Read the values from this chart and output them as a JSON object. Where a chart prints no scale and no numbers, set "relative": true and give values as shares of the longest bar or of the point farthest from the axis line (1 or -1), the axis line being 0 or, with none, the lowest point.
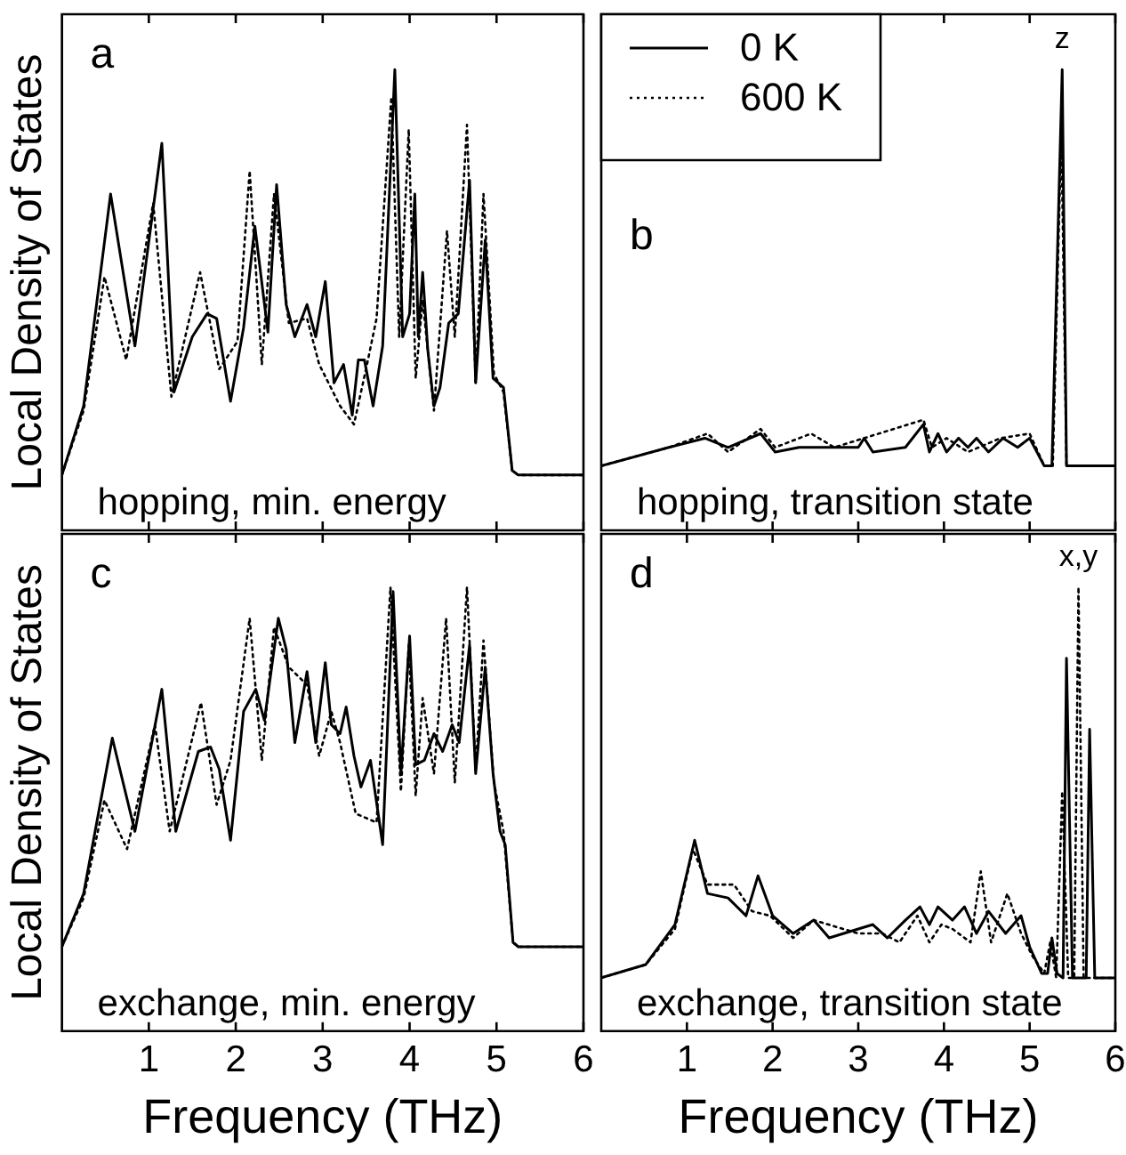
{
  "chart_data": [
    {
      "type": "line",
      "title": "a",
      "ylabel": "Local Density of States",
      "annotations": [
        "hopping, min. energy"
      ],
      "relative": true,
      "xlim": [
        0,
        6
      ],
      "xticks": [
        1,
        2,
        3,
        4,
        5,
        6
      ],
      "tick_labels": false,
      "legend": false,
      "series": [
        {
          "color": "#000000",
          "line_style": "solid",
          "x": [
            0,
            0.25,
            0.56,
            0.84,
            1.15,
            1.29,
            1.5,
            1.67,
            1.78,
            1.94,
            2.09,
            2.22,
            2.37,
            2.47,
            2.58,
            2.68,
            2.82,
            2.92,
            3.03,
            3.13,
            3.24,
            3.34,
            3.41,
            3.48,
            3.58,
            3.69,
            3.83,
            3.92,
            4.0,
            4.06,
            4.1,
            4.15,
            4.21,
            4.28,
            4.35,
            4.45,
            4.56,
            4.69,
            4.76,
            4.87,
            4.96,
            5.08,
            5.18,
            5.25,
            6
          ],
          "values": [
            0.12,
            0.27,
            0.73,
            0.4,
            0.84,
            0.3,
            0.42,
            0.47,
            0.46,
            0.28,
            0.44,
            0.66,
            0.43,
            0.75,
            0.49,
            0.42,
            0.49,
            0.42,
            0.54,
            0.32,
            0.36,
            0.25,
            0.37,
            0.37,
            0.27,
            0.4,
            1.0,
            0.42,
            0.47,
            0.73,
            0.42,
            0.56,
            0.39,
            0.27,
            0.31,
            0.45,
            0.47,
            0.76,
            0.32,
            0.63,
            0.33,
            0.31,
            0.13,
            0.12,
            0.12
          ]
        },
        {
          "color": "#000000",
          "line_style": "dotted",
          "x": [
            0,
            0.25,
            0.49,
            0.74,
            1.05,
            1.26,
            1.59,
            1.81,
            2.02,
            2.16,
            2.3,
            2.44,
            2.61,
            2.82,
            2.96,
            3.2,
            3.36,
            3.51,
            3.62,
            3.79,
            3.88,
            3.99,
            4.07,
            4.15,
            4.28,
            4.43,
            4.52,
            4.66,
            4.76,
            4.85,
            4.97,
            5.08,
            5.18,
            5.25,
            6
          ],
          "values": [
            0.12,
            0.26,
            0.55,
            0.37,
            0.71,
            0.29,
            0.56,
            0.35,
            0.41,
            0.78,
            0.36,
            0.73,
            0.45,
            0.46,
            0.36,
            0.27,
            0.23,
            0.36,
            0.46,
            0.94,
            0.42,
            0.87,
            0.33,
            0.5,
            0.26,
            0.65,
            0.42,
            0.88,
            0.32,
            0.73,
            0.34,
            0.3,
            0.13,
            0.12,
            0.12
          ]
        }
      ]
    },
    {
      "type": "line",
      "title": "b",
      "annotations": [
        "hopping, transition state",
        {
          "text": "z",
          "x": 5.38,
          "y": 1.0
        }
      ],
      "relative": true,
      "xlim": [
        0,
        6
      ],
      "xticks": [
        1,
        2,
        3,
        4,
        5,
        6
      ],
      "tick_labels": false,
      "legend": "top left",
      "series": [
        {
          "name": "0 K",
          "color": "#000000",
          "line_style": "solid",
          "x": [
            0,
            0.79,
            1.21,
            1.48,
            1.86,
            2.03,
            2.31,
            3.0,
            3.07,
            3.17,
            3.55,
            3.76,
            3.83,
            3.93,
            4.03,
            4.17,
            4.28,
            4.38,
            4.52,
            4.69,
            4.86,
            5.0,
            5.17,
            5.26,
            5.38,
            5.43,
            6
          ],
          "values": [
            0.14,
            0.18,
            0.2,
            0.18,
            0.21,
            0.17,
            0.18,
            0.18,
            0.2,
            0.17,
            0.18,
            0.23,
            0.17,
            0.21,
            0.17,
            0.2,
            0.18,
            0.2,
            0.17,
            0.2,
            0.18,
            0.2,
            0.14,
            0.14,
            1.0,
            0.14,
            0.14
          ]
        },
        {
          "name": "600 K",
          "color": "#000000",
          "line_style": "dotted",
          "x": [
            0,
            0.79,
            1.24,
            1.48,
            1.86,
            2.03,
            2.45,
            2.72,
            3.76,
            3.86,
            4.03,
            4.28,
            4.66,
            5.0,
            5.17,
            5.27,
            5.37,
            5.43,
            6
          ],
          "values": [
            0.14,
            0.18,
            0.21,
            0.17,
            0.22,
            0.18,
            0.21,
            0.18,
            0.24,
            0.18,
            0.2,
            0.17,
            0.2,
            0.21,
            0.14,
            0.14,
            0.87,
            0.14,
            0.14
          ]
        }
      ]
    },
    {
      "type": "line",
      "title": "c",
      "ylabel": "Local Density of States",
      "xlabel": "Frequency (THz)",
      "annotations": [
        "exchange, min. energy"
      ],
      "relative": true,
      "xlim": [
        0,
        6
      ],
      "xticks": [
        1,
        2,
        3,
        4,
        5,
        6
      ],
      "tick_labels": "x",
      "legend": false,
      "series": [
        {
          "color": "#000000",
          "line_style": "solid",
          "x": [
            0,
            0.25,
            0.58,
            0.84,
            1.15,
            1.31,
            1.57,
            1.71,
            1.81,
            1.94,
            2.09,
            2.23,
            2.33,
            2.49,
            2.58,
            2.68,
            2.82,
            2.92,
            3.03,
            3.1,
            3.2,
            3.27,
            3.36,
            3.44,
            3.55,
            3.69,
            3.81,
            3.9,
            4.0,
            4.07,
            4.17,
            4.28,
            4.38,
            4.49,
            4.57,
            4.69,
            4.76,
            4.87,
            4.96,
            5.04,
            5.1,
            5.19,
            5.25,
            6
          ],
          "values": [
            0.19,
            0.31,
            0.66,
            0.45,
            0.77,
            0.45,
            0.63,
            0.64,
            0.59,
            0.43,
            0.72,
            0.77,
            0.7,
            0.93,
            0.86,
            0.65,
            0.81,
            0.65,
            0.83,
            0.69,
            0.67,
            0.73,
            0.62,
            0.55,
            0.61,
            0.42,
            0.99,
            0.58,
            0.89,
            0.6,
            0.61,
            0.67,
            0.63,
            0.69,
            0.65,
            0.87,
            0.58,
            0.82,
            0.58,
            0.45,
            0.42,
            0.2,
            0.19,
            0.19
          ]
        },
        {
          "color": "#000000",
          "line_style": "dotted",
          "x": [
            0,
            0.25,
            0.49,
            0.75,
            1.07,
            1.24,
            1.6,
            1.78,
            1.94,
            2.16,
            2.3,
            2.44,
            2.61,
            2.82,
            2.96,
            3.1,
            3.2,
            3.38,
            3.62,
            3.78,
            3.9,
            3.99,
            4.07,
            4.15,
            4.28,
            4.42,
            4.52,
            4.66,
            4.76,
            4.85,
            4.97,
            5.08,
            5.19,
            5.25,
            6
          ],
          "values": [
            0.19,
            0.3,
            0.52,
            0.41,
            0.69,
            0.45,
            0.74,
            0.51,
            0.61,
            0.93,
            0.61,
            0.91,
            0.82,
            0.78,
            0.62,
            0.72,
            0.65,
            0.49,
            0.47,
            1.0,
            0.54,
            0.87,
            0.53,
            0.75,
            0.58,
            0.93,
            0.56,
            1.0,
            0.59,
            0.88,
            0.56,
            0.45,
            0.2,
            0.19,
            0.19
          ]
        }
      ]
    },
    {
      "type": "line",
      "title": "d",
      "xlabel": "Frequency (THz)",
      "annotations": [
        "exchange, transition state",
        {
          "text": "x,y",
          "x": 5.57,
          "y": 1.0
        }
      ],
      "relative": true,
      "xlim": [
        0,
        6
      ],
      "xticks": [
        1,
        2,
        3,
        4,
        5,
        6
      ],
      "tick_labels": "x",
      "legend": false,
      "series": [
        {
          "color": "#000000",
          "line_style": "solid",
          "x": [
            0,
            0.52,
            0.86,
            1.09,
            1.24,
            1.48,
            1.69,
            1.83,
            2.0,
            2.24,
            2.48,
            2.66,
            3.0,
            3.17,
            3.34,
            3.55,
            3.72,
            3.83,
            3.93,
            4.1,
            4.24,
            4.38,
            4.52,
            4.72,
            4.9,
            5.0,
            5.14,
            5.21,
            5.26,
            5.32,
            5.39,
            5.43,
            5.5,
            5.66,
            5.7,
            5.76,
            6
          ],
          "values": [
            0.12,
            0.15,
            0.24,
            0.43,
            0.31,
            0.3,
            0.26,
            0.35,
            0.26,
            0.22,
            0.25,
            0.21,
            0.23,
            0.24,
            0.21,
            0.25,
            0.28,
            0.24,
            0.28,
            0.25,
            0.28,
            0.22,
            0.27,
            0.22,
            0.26,
            0.19,
            0.13,
            0.13,
            0.21,
            0.13,
            0.12,
            0.84,
            0.12,
            0.12,
            0.68,
            0.12,
            0.12
          ]
        },
        {
          "color": "#000000",
          "line_style": "dotted",
          "x": [
            0,
            0.52,
            0.86,
            1.07,
            1.24,
            1.55,
            1.76,
            1.97,
            2.24,
            2.48,
            3.0,
            3.28,
            3.48,
            3.69,
            3.83,
            3.97,
            4.1,
            4.31,
            4.43,
            4.55,
            4.74,
            4.9,
            5.03,
            5.17,
            5.24,
            5.31,
            5.38,
            5.45,
            5.52,
            5.57,
            5.63,
            6
          ],
          "values": [
            0.12,
            0.15,
            0.23,
            0.41,
            0.33,
            0.33,
            0.27,
            0.26,
            0.21,
            0.25,
            0.22,
            0.22,
            0.2,
            0.26,
            0.2,
            0.24,
            0.23,
            0.2,
            0.36,
            0.2,
            0.31,
            0.22,
            0.17,
            0.13,
            0.2,
            0.12,
            0.54,
            0.12,
            0.12,
            1.0,
            0.12,
            0.12
          ]
        }
      ]
    }
  ]
}
